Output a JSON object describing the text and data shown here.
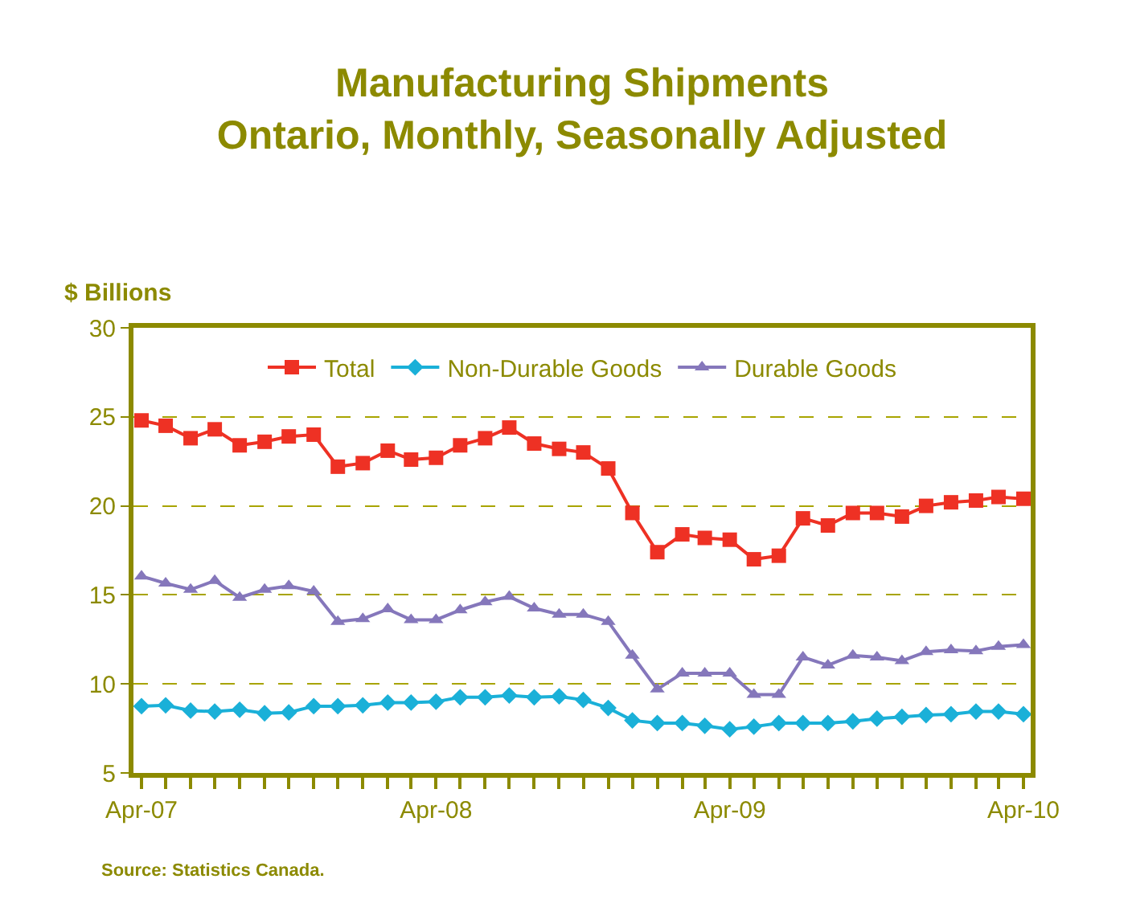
{
  "chart_data": {
    "type": "line",
    "title": "Manufacturing Shipments",
    "subtitle": "Ontario, Monthly, Seasonally Adjusted",
    "ylabel": "$ Billions",
    "annotations": [
      "Source: Statistics Canada."
    ],
    "x": [
      "2007-04",
      "2007-05",
      "2007-06",
      "2007-07",
      "2007-08",
      "2007-09",
      "2007-10",
      "2007-11",
      "2007-12",
      "2008-01",
      "2008-02",
      "2008-03",
      "2008-04",
      "2008-05",
      "2008-06",
      "2008-07",
      "2008-08",
      "2008-09",
      "2008-10",
      "2008-11",
      "2008-12",
      "2009-01",
      "2009-02",
      "2009-03",
      "2009-04",
      "2009-05",
      "2009-06",
      "2009-07",
      "2009-08",
      "2009-09",
      "2009-10",
      "2009-11",
      "2009-12",
      "2010-01",
      "2010-02",
      "2010-03",
      "2010-04"
    ],
    "series": [
      {
        "name": "Total",
        "color": "#ee3124",
        "marker": "square",
        "values": [
          24.8,
          24.5,
          23.8,
          24.3,
          23.4,
          23.6,
          23.9,
          24.0,
          22.2,
          22.4,
          23.1,
          22.6,
          22.7,
          23.4,
          23.8,
          24.4,
          23.5,
          23.2,
          23.0,
          22.1,
          19.6,
          17.4,
          18.4,
          18.2,
          18.1,
          17.0,
          17.2,
          19.3,
          18.9,
          19.6,
          19.6,
          19.4,
          20.0,
          20.2,
          20.3,
          20.5,
          20.4
        ]
      },
      {
        "name": "Non-Durable Goods",
        "color": "#1ab0d8",
        "marker": "diamond",
        "values": [
          8.75,
          8.8,
          8.5,
          8.45,
          8.55,
          8.35,
          8.4,
          8.75,
          8.75,
          8.8,
          8.95,
          8.95,
          9.0,
          9.25,
          9.25,
          9.35,
          9.25,
          9.3,
          9.1,
          8.65,
          7.95,
          7.8,
          7.8,
          7.65,
          7.45,
          7.6,
          7.8,
          7.8,
          7.8,
          7.9,
          8.05,
          8.15,
          8.25,
          8.3,
          8.45,
          8.45,
          8.3
        ]
      },
      {
        "name": "Durable Goods",
        "color": "#8577bb",
        "marker": "triangle",
        "values": [
          16.05,
          15.65,
          15.3,
          15.8,
          14.85,
          15.3,
          15.5,
          15.2,
          13.5,
          13.65,
          14.2,
          13.6,
          13.6,
          14.15,
          14.6,
          14.9,
          14.25,
          13.9,
          13.9,
          13.5,
          11.6,
          9.7,
          10.6,
          10.6,
          10.6,
          9.4,
          9.4,
          11.5,
          11.05,
          11.6,
          11.5,
          11.3,
          11.8,
          11.9,
          11.85,
          12.1,
          12.2
        ]
      }
    ],
    "xlim": [
      "2007-03-22",
      "2010-04-10"
    ],
    "xticks": [
      {
        "value": "2007-04",
        "label": "Apr-07"
      },
      {
        "value": "2007-05",
        "label": null
      },
      {
        "value": "2007-06",
        "label": null
      },
      {
        "value": "2007-07",
        "label": null
      },
      {
        "value": "2007-08",
        "label": null
      },
      {
        "value": "2007-09",
        "label": null
      },
      {
        "value": "2007-10",
        "label": null
      },
      {
        "value": "2007-11",
        "label": null
      },
      {
        "value": "2007-12",
        "label": null
      },
      {
        "value": "2008-01",
        "label": null
      },
      {
        "value": "2008-02",
        "label": null
      },
      {
        "value": "2008-03",
        "label": null
      },
      {
        "value": "2008-04",
        "label": "Apr-08"
      },
      {
        "value": "2008-05",
        "label": null
      },
      {
        "value": "2008-06",
        "label": null
      },
      {
        "value": "2008-07",
        "label": null
      },
      {
        "value": "2008-08",
        "label": null
      },
      {
        "value": "2008-09",
        "label": null
      },
      {
        "value": "2008-10",
        "label": null
      },
      {
        "value": "2008-11",
        "label": null
      },
      {
        "value": "2008-12",
        "label": null
      },
      {
        "value": "2009-01",
        "label": null
      },
      {
        "value": "2009-02",
        "label": null
      },
      {
        "value": "2009-03",
        "label": null
      },
      {
        "value": "2009-04",
        "label": "Apr-09"
      },
      {
        "value": "2009-05",
        "label": null
      },
      {
        "value": "2009-06",
        "label": null
      },
      {
        "value": "2009-07",
        "label": null
      },
      {
        "value": "2009-08",
        "label": null
      },
      {
        "value": "2009-09",
        "label": null
      },
      {
        "value": "2009-10",
        "label": null
      },
      {
        "value": "2009-11",
        "label": null
      },
      {
        "value": "2009-12",
        "label": null
      },
      {
        "value": "2010-01",
        "label": null
      },
      {
        "value": "2010-02",
        "label": null
      },
      {
        "value": "2010-03",
        "label": null
      },
      {
        "value": "2010-04",
        "label": "Apr-10"
      }
    ],
    "ylim": [
      5,
      30
    ],
    "yticks": [
      5,
      10,
      15,
      20,
      25,
      30
    ],
    "grid": "y",
    "legend": "top",
    "line_style": "solid"
  }
}
